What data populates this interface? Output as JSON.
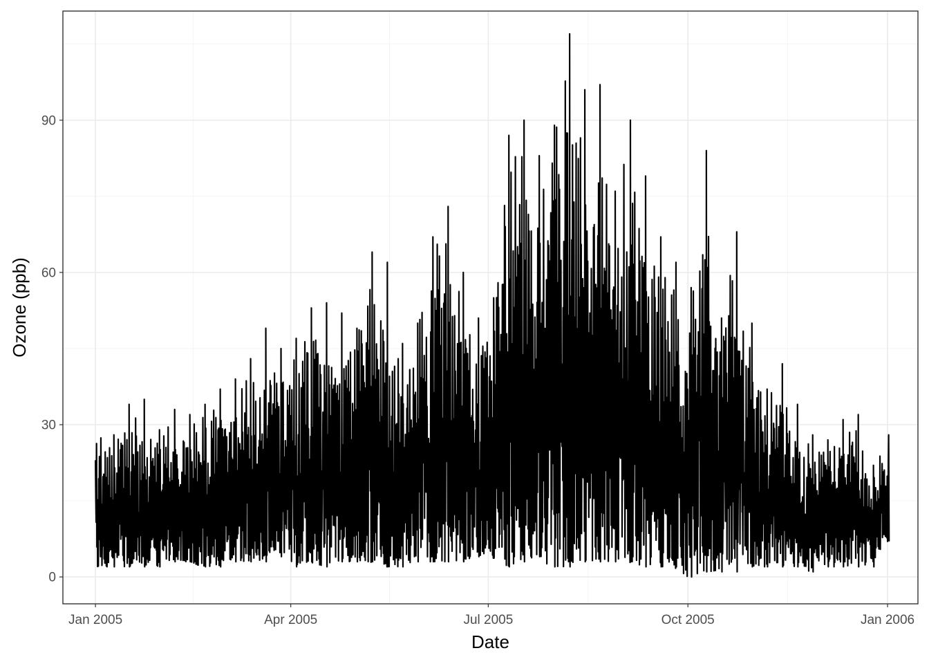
{
  "chart_data": {
    "type": "line",
    "title": "",
    "xlabel": "Date",
    "ylabel": "Ozone (ppb)",
    "x_tick_labels": [
      "Jan 2005",
      "Apr 2005",
      "Jul 2005",
      "Oct 2005",
      "Jan 2006"
    ],
    "x_tick_dates": [
      "2005-01-01",
      "2005-04-01",
      "2005-07-01",
      "2005-10-01",
      "2006-01-01"
    ],
    "y_tick_values": [
      0,
      30,
      60,
      90
    ],
    "y_tick_labels": [
      "0",
      "30",
      "60",
      "90"
    ],
    "xlim": [
      "2004-12-17",
      "2006-01-15"
    ],
    "ylim": [
      -5.3,
      111.5
    ],
    "grid": true,
    "line_color": "#000000",
    "series": [
      {
        "name": "",
        "date_range": [
          "2005-01-01",
          "2006-01-01"
        ],
        "x": [
          "2005-01-01",
          "2005-01-08",
          "2005-01-15",
          "2005-01-22",
          "2005-01-29",
          "2005-02-05",
          "2005-02-12",
          "2005-02-19",
          "2005-02-26",
          "2005-03-05",
          "2005-03-12",
          "2005-03-19",
          "2005-03-26",
          "2005-04-02",
          "2005-04-09",
          "2005-04-16",
          "2005-04-23",
          "2005-04-30",
          "2005-05-07",
          "2005-05-14",
          "2005-05-21",
          "2005-05-28",
          "2005-06-04",
          "2005-06-11",
          "2005-06-18",
          "2005-06-25",
          "2005-07-02",
          "2005-07-09",
          "2005-07-16",
          "2005-07-23",
          "2005-07-30",
          "2005-08-06",
          "2005-08-13",
          "2005-08-20",
          "2005-08-27",
          "2005-09-03",
          "2005-09-10",
          "2005-09-17",
          "2005-09-24",
          "2005-10-01",
          "2005-10-08",
          "2005-10-15",
          "2005-10-22",
          "2005-10-29",
          "2005-11-05",
          "2005-11-12",
          "2005-11-19",
          "2005-11-26",
          "2005-12-03",
          "2005-12-10",
          "2005-12-17",
          "2005-12-24",
          "2005-12-31"
        ],
        "weekly_max": [
          30,
          28,
          34,
          35,
          29,
          33,
          32,
          34,
          37,
          39,
          43,
          49,
          45,
          47,
          53,
          54,
          52,
          49,
          64,
          62,
          46,
          50,
          67,
          73,
          60,
          51,
          55,
          87,
          90,
          83,
          89,
          107,
          96,
          97,
          76,
          90,
          79,
          67,
          62,
          57,
          84,
          51,
          68,
          50,
          37,
          42,
          34,
          28,
          27,
          31,
          32,
          22,
          28
        ],
        "weekly_min": [
          2,
          2,
          2,
          2,
          2,
          3,
          3,
          2,
          2,
          3,
          3,
          3,
          4,
          2,
          3,
          2,
          3,
          3,
          3,
          2,
          2,
          3,
          3,
          3,
          3,
          4,
          4,
          2,
          3,
          4,
          2,
          2,
          3,
          3,
          3,
          3,
          2,
          2,
          2,
          0,
          1,
          1,
          1,
          2,
          2,
          2,
          2,
          1,
          2,
          2,
          2,
          2,
          7
        ],
        "start_value": 23,
        "end_value": 7
      }
    ]
  }
}
